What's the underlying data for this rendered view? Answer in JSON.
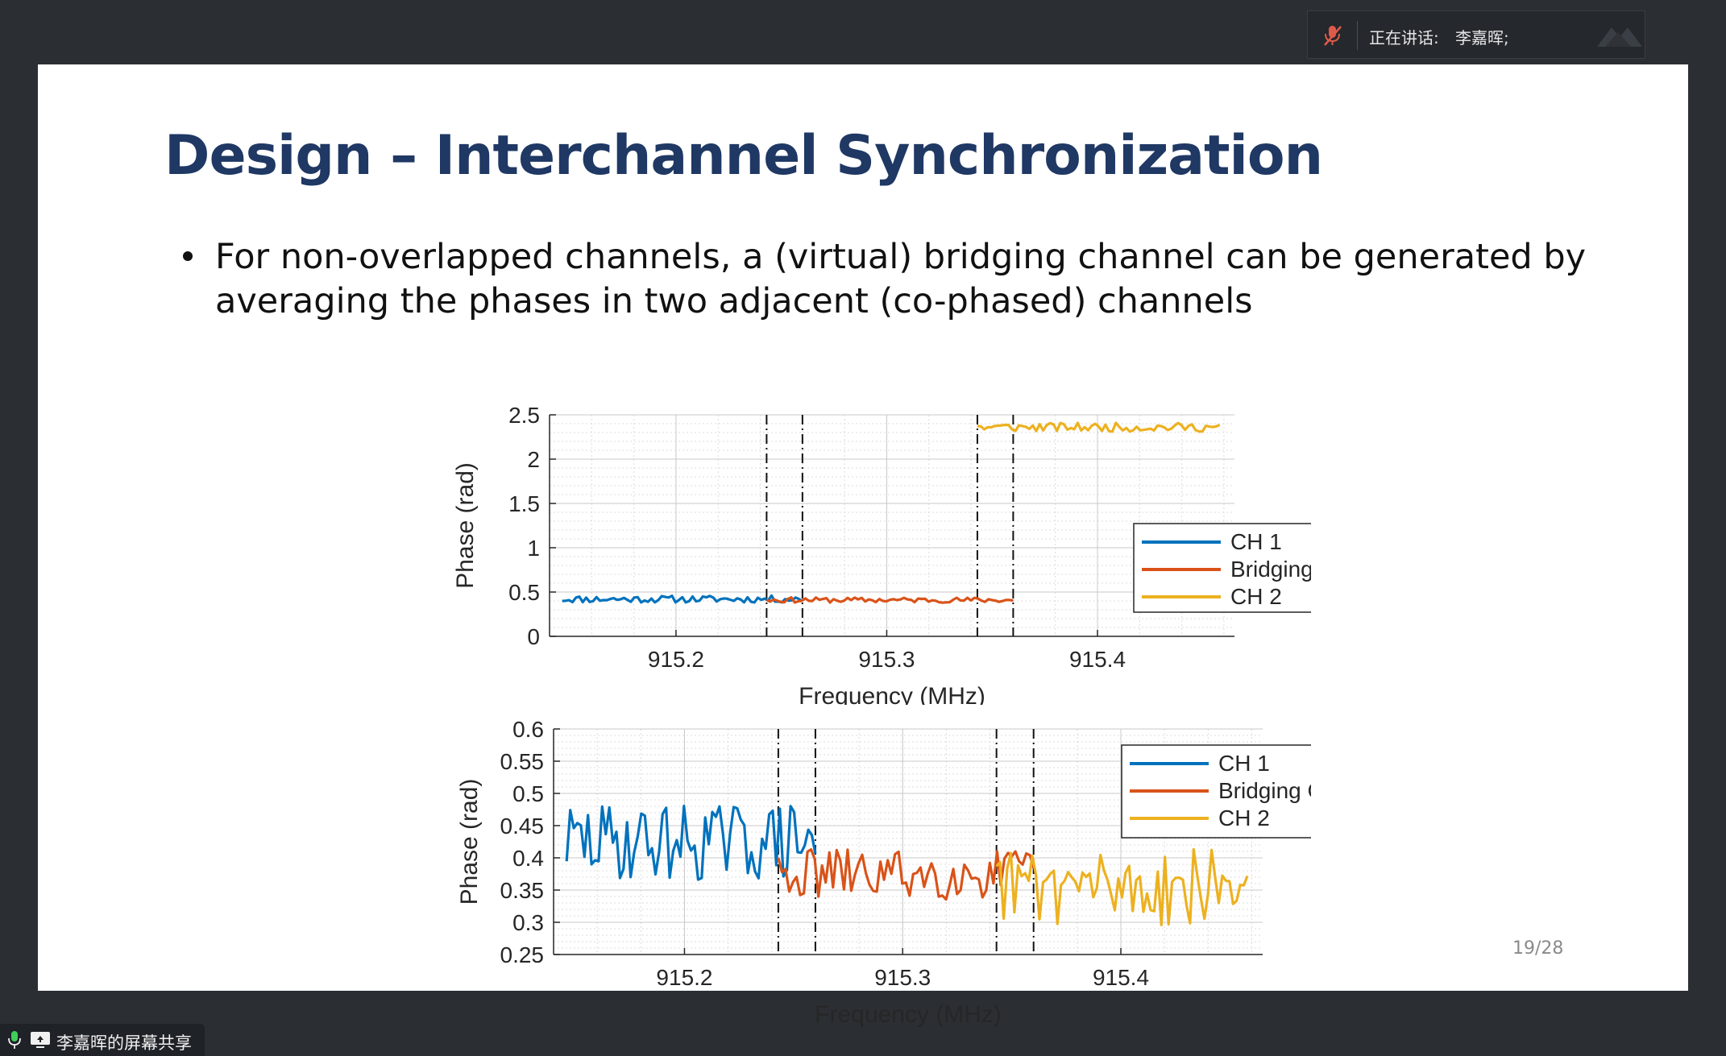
{
  "speaker": {
    "label": "正在讲话:",
    "name": "李嘉晖;",
    "mic_icon": "muted-microphone-icon",
    "logo_icon": "app-logo-icon"
  },
  "slide": {
    "title": "Design – Interchannel Synchronization",
    "bullet": "For non-overlapped channels, a (virtual) bridging channel can be generated by averaging the phases in two adjacent (co-phased) channels",
    "page": "19/28"
  },
  "share_bar": {
    "label": "李嘉晖的屏幕共享",
    "mic_icon": "microphone-icon",
    "screen_icon": "screen-share-icon"
  },
  "colors": {
    "ch1": "#0072BD",
    "bridge": "#D95319",
    "ch2": "#EDB120",
    "title": "#1f3864"
  },
  "chart_data": [
    {
      "type": "line",
      "xlabel": "Frequency (MHz)",
      "ylabel": "Phase (rad)",
      "xlim": [
        915.14,
        915.465
      ],
      "ylim": [
        0,
        2.5
      ],
      "xticks": [
        915.2,
        915.3,
        915.4
      ],
      "xtick_labels": [
        "915.2",
        "915.3",
        "915.4"
      ],
      "yticks": [
        0,
        0.5,
        1,
        1.5,
        2,
        2.5
      ],
      "ytick_labels": [
        "0",
        "0.5",
        "1",
        "1.5",
        "2",
        "2.5"
      ],
      "grid": true,
      "legend": "right",
      "vlines": [
        915.243,
        915.26,
        915.343,
        915.36
      ],
      "series": [
        {
          "name": "CH 1",
          "color": "#0072BD",
          "x_start": 915.146,
          "x_end": 915.26,
          "mean": 0.42,
          "amp": 0.04
        },
        {
          "name": "Bridging CH",
          "color": "#D95319",
          "x_start": 915.243,
          "x_end": 915.36,
          "mean": 0.41,
          "amp": 0.03
        },
        {
          "name": "CH 2",
          "color": "#EDB120",
          "x_start": 915.343,
          "x_end": 915.458,
          "mean": 2.36,
          "amp": 0.05
        }
      ]
    },
    {
      "type": "line",
      "xlabel": "Frequency (MHz)",
      "ylabel": "Phase (rad)",
      "xlim": [
        915.14,
        915.465
      ],
      "ylim": [
        0.25,
        0.6
      ],
      "xticks": [
        915.2,
        915.3,
        915.4
      ],
      "xtick_labels": [
        "915.2",
        "915.3",
        "915.4"
      ],
      "yticks": [
        0.25,
        0.3,
        0.35,
        0.4,
        0.45,
        0.5,
        0.55,
        0.6
      ],
      "ytick_labels": [
        "0.25",
        "0.3",
        "0.35",
        "0.4",
        "0.45",
        "0.5",
        "0.55",
        "0.6"
      ],
      "grid": true,
      "legend": "top-right",
      "vlines": [
        915.243,
        915.26,
        915.343,
        915.36
      ],
      "series": [
        {
          "name": "CH 1",
          "color": "#0072BD",
          "x_start": 915.146,
          "x_end": 915.26,
          "mean": 0.425,
          "amp": 0.06
        },
        {
          "name": "Bridging CH",
          "color": "#D95319",
          "x_start": 915.243,
          "x_end": 915.36,
          "mean": 0.375,
          "amp": 0.04
        },
        {
          "name": "CH 2",
          "color": "#EDB120",
          "x_start": 915.343,
          "x_end": 915.458,
          "mean": 0.355,
          "amp": 0.06
        }
      ]
    }
  ]
}
